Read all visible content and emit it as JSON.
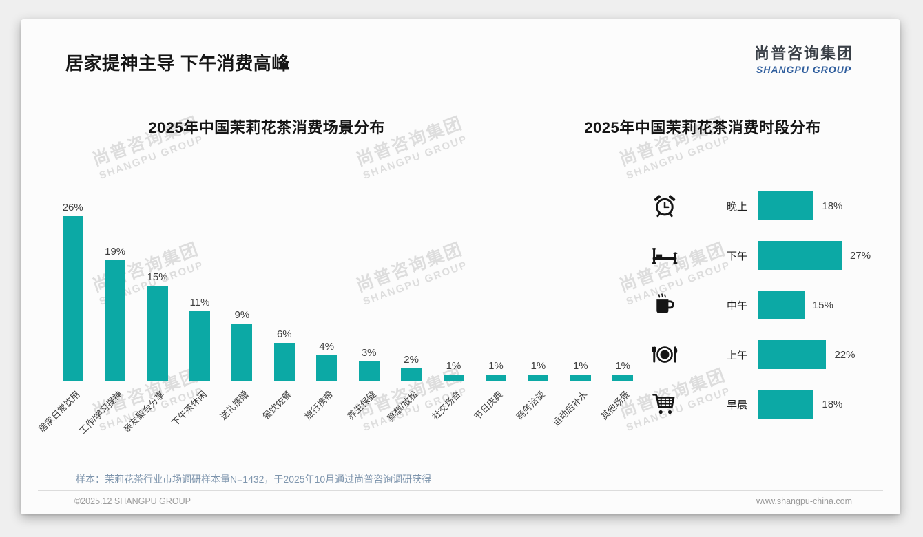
{
  "page": {
    "title": "居家提神主导 下午消费高峰",
    "footnote": "样本：茉莉花茶行业市场调研样本量N=1432，于2025年10月通过尚普咨询调研获得",
    "footer_left": "©2025.12 SHANGPU GROUP",
    "footer_right": "www.shangpu-china.com"
  },
  "logo": {
    "cn": "尚普咨询集团",
    "en": "SHANGPU GROUP"
  },
  "watermark": {
    "cn": "尚普咨询集团",
    "en": "SHANGPU GROUP"
  },
  "colors": {
    "bar_teal": "#0CA9A5",
    "logo_blue": "#2D5C9C",
    "footnote_blue_gray": "#7E95AD"
  },
  "chart_data": [
    {
      "type": "bar",
      "orientation": "vertical",
      "title": "2025年中国茉莉花茶消费场景分布",
      "categories": [
        "居家日常饮用",
        "工作/学习提神",
        "亲友聚会分享",
        "下午茶休闲",
        "送礼馈赠",
        "餐饮佐餐",
        "旅行携带",
        "养生保健",
        "冥想/放松",
        "社交场合",
        "节日庆典",
        "商务洽谈",
        "运动后补水",
        "其他场景"
      ],
      "values": [
        26,
        19,
        15,
        11,
        9,
        6,
        4,
        3,
        2,
        1,
        1,
        1,
        1,
        1
      ],
      "unit": "%",
      "data_labels": true,
      "grid": false,
      "ylim": [
        0,
        28
      ]
    },
    {
      "type": "bar",
      "orientation": "horizontal",
      "title": "2025年中国茉莉花茶消费时段分布",
      "categories": [
        "晚上",
        "下午",
        "中午",
        "上午",
        "早晨"
      ],
      "values": [
        18,
        27,
        15,
        22,
        18
      ],
      "icons": [
        "alarm-clock-icon",
        "bed-icon",
        "coffee-icon",
        "dining-icon",
        "shopping-cart-icon"
      ],
      "unit": "%",
      "data_labels": true,
      "grid": false,
      "xlim": [
        0,
        30
      ]
    }
  ]
}
